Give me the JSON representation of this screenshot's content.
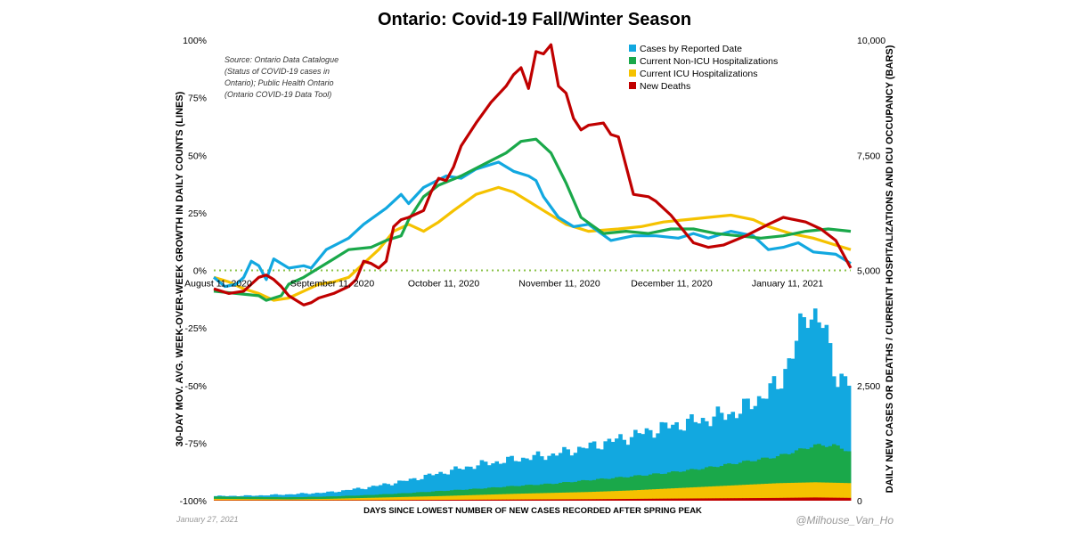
{
  "chart_data": {
    "type": "line",
    "title": "Ontario: Covid-19 Fall/Winter Season",
    "xlabel": "DAYS SINCE LOWEST NUMBER OF NEW CASES RECORDED AFTER SPRING PEAK",
    "ylabel_left": "30-DAY MOV. AVG. WEEK-OVER-WEEK GROWTH IN DAILY COUNTS (LINES)",
    "ylabel_right": "DAILY NEW CASES OR DEATHS / CURRENT HOSPITALIZATIONS AND ICU OCCUPANCY (BARS)",
    "x_ticks": [
      "August 11, 2020",
      "September 11, 2020",
      "October 11, 2020",
      "November 11, 2020",
      "December 11, 2020",
      "January 11, 2021"
    ],
    "y_left_ticks": [
      "100%",
      "75%",
      "50%",
      "25%",
      "0%",
      "-25%",
      "-50%",
      "-75%",
      "-100%"
    ],
    "y_right_ticks": [
      "10,000",
      "7,500",
      "5,000",
      "2,500",
      "0"
    ],
    "ylim_left": [
      -100,
      100
    ],
    "ylim_right": [
      0,
      10000
    ],
    "source_note": "Source: Ontario Data Catalogue (Status of COVID-19 cases in Ontario); Public Health Ontario (Ontario COVID-19 Data Tool)",
    "date_note": "January 27, 2021",
    "credit": "@Milhouse_Van_Ho",
    "legend_position": "top-right",
    "days": 170,
    "series": [
      {
        "name": "Cases by Reported Date",
        "color": "#12A8E0"
      },
      {
        "name": "Current Non-ICU Hospitalizations",
        "color": "#1AA84A"
      },
      {
        "name": "Current ICU Hospitalizations",
        "color": "#F5C200"
      },
      {
        "name": "New Deaths",
        "color": "#C00000"
      }
    ],
    "growth_lines": {
      "Cases by Reported Date": [
        [
          0,
          -3
        ],
        [
          3,
          -7
        ],
        [
          6,
          -6
        ],
        [
          8,
          -3
        ],
        [
          10,
          4
        ],
        [
          12,
          2
        ],
        [
          14,
          -4
        ],
        [
          16,
          5
        ],
        [
          20,
          1
        ],
        [
          24,
          2
        ],
        [
          26,
          1
        ],
        [
          30,
          9
        ],
        [
          36,
          14
        ],
        [
          40,
          20
        ],
        [
          46,
          27
        ],
        [
          50,
          33
        ],
        [
          52,
          29
        ],
        [
          56,
          36
        ],
        [
          62,
          41
        ],
        [
          66,
          40
        ],
        [
          70,
          44
        ],
        [
          76,
          47
        ],
        [
          80,
          43
        ],
        [
          84,
          41
        ],
        [
          86,
          39
        ],
        [
          88,
          32
        ],
        [
          92,
          23
        ],
        [
          96,
          19
        ],
        [
          100,
          20
        ],
        [
          106,
          13
        ],
        [
          112,
          15
        ],
        [
          118,
          15
        ],
        [
          124,
          14
        ],
        [
          128,
          16
        ],
        [
          132,
          14
        ],
        [
          138,
          17
        ],
        [
          144,
          15
        ],
        [
          148,
          9
        ],
        [
          152,
          10
        ],
        [
          156,
          12
        ],
        [
          160,
          8
        ],
        [
          166,
          7
        ],
        [
          170,
          3
        ]
      ],
      "Current Non-ICU Hospitalizations": [
        [
          0,
          -9
        ],
        [
          6,
          -10
        ],
        [
          12,
          -11
        ],
        [
          14,
          -13
        ],
        [
          18,
          -11
        ],
        [
          20,
          -6
        ],
        [
          24,
          -3
        ],
        [
          28,
          1
        ],
        [
          32,
          5
        ],
        [
          36,
          9
        ],
        [
          42,
          10
        ],
        [
          46,
          13
        ],
        [
          50,
          15
        ],
        [
          52,
          22
        ],
        [
          56,
          32
        ],
        [
          60,
          37
        ],
        [
          66,
          41
        ],
        [
          72,
          46
        ],
        [
          78,
          51
        ],
        [
          82,
          56
        ],
        [
          86,
          57
        ],
        [
          90,
          51
        ],
        [
          94,
          38
        ],
        [
          98,
          23
        ],
        [
          104,
          16
        ],
        [
          110,
          17
        ],
        [
          116,
          16
        ],
        [
          122,
          18
        ],
        [
          128,
          18
        ],
        [
          134,
          16
        ],
        [
          140,
          15
        ],
        [
          146,
          14
        ],
        [
          152,
          15
        ],
        [
          158,
          17
        ],
        [
          164,
          18
        ],
        [
          170,
          17
        ]
      ],
      "Current ICU Hospitalizations": [
        [
          0,
          -3
        ],
        [
          4,
          -5
        ],
        [
          8,
          -8
        ],
        [
          12,
          -10
        ],
        [
          16,
          -13
        ],
        [
          20,
          -12
        ],
        [
          24,
          -9
        ],
        [
          28,
          -6
        ],
        [
          32,
          -5
        ],
        [
          36,
          -3
        ],
        [
          40,
          3
        ],
        [
          44,
          9
        ],
        [
          48,
          17
        ],
        [
          52,
          20
        ],
        [
          56,
          17
        ],
        [
          60,
          21
        ],
        [
          64,
          26
        ],
        [
          70,
          33
        ],
        [
          76,
          36
        ],
        [
          80,
          34
        ],
        [
          84,
          30
        ],
        [
          88,
          26
        ],
        [
          94,
          20
        ],
        [
          100,
          17
        ],
        [
          108,
          18
        ],
        [
          114,
          19
        ],
        [
          120,
          21
        ],
        [
          126,
          22
        ],
        [
          132,
          23
        ],
        [
          138,
          24
        ],
        [
          144,
          22
        ],
        [
          148,
          19
        ],
        [
          154,
          16
        ],
        [
          160,
          14
        ],
        [
          166,
          11
        ],
        [
          170,
          9
        ]
      ],
      "New Deaths": [
        [
          0,
          -8
        ],
        [
          4,
          -10
        ],
        [
          8,
          -9
        ],
        [
          10,
          -6
        ],
        [
          12,
          -3
        ],
        [
          14,
          -2
        ],
        [
          16,
          -4
        ],
        [
          18,
          -7
        ],
        [
          20,
          -11
        ],
        [
          22,
          -13
        ],
        [
          24,
          -15
        ],
        [
          26,
          -14
        ],
        [
          28,
          -12
        ],
        [
          32,
          -10
        ],
        [
          36,
          -7
        ],
        [
          38,
          -4
        ],
        [
          40,
          4
        ],
        [
          42,
          3
        ],
        [
          44,
          1
        ],
        [
          46,
          4
        ],
        [
          48,
          19
        ],
        [
          50,
          22
        ],
        [
          52,
          23
        ],
        [
          56,
          26
        ],
        [
          58,
          34
        ],
        [
          60,
          40
        ],
        [
          62,
          39
        ],
        [
          64,
          45
        ],
        [
          66,
          54
        ],
        [
          70,
          64
        ],
        [
          74,
          73
        ],
        [
          78,
          80
        ],
        [
          80,
          85
        ],
        [
          82,
          88
        ],
        [
          84,
          79
        ],
        [
          86,
          95
        ],
        [
          88,
          94
        ],
        [
          90,
          98
        ],
        [
          92,
          80
        ],
        [
          94,
          77
        ],
        [
          96,
          66
        ],
        [
          98,
          61
        ],
        [
          100,
          63
        ],
        [
          104,
          64
        ],
        [
          106,
          59
        ],
        [
          108,
          58
        ],
        [
          112,
          33
        ],
        [
          116,
          32
        ],
        [
          118,
          30
        ],
        [
          122,
          24
        ],
        [
          128,
          12
        ],
        [
          132,
          10
        ],
        [
          136,
          11
        ],
        [
          142,
          15
        ],
        [
          148,
          20
        ],
        [
          152,
          23
        ],
        [
          158,
          21
        ],
        [
          162,
          18
        ],
        [
          166,
          13
        ],
        [
          168,
          7
        ],
        [
          170,
          1
        ]
      ]
    },
    "bar_levels": {
      "Cases by Reported Date": [
        [
          0,
          100
        ],
        [
          10,
          110
        ],
        [
          20,
          140
        ],
        [
          30,
          180
        ],
        [
          40,
          280
        ],
        [
          50,
          420
        ],
        [
          60,
          600
        ],
        [
          70,
          780
        ],
        [
          80,
          900
        ],
        [
          90,
          1000
        ],
        [
          100,
          1180
        ],
        [
          110,
          1380
        ],
        [
          120,
          1600
        ],
        [
          130,
          1750
        ],
        [
          140,
          1950
        ],
        [
          150,
          2500
        ],
        [
          155,
          3400
        ],
        [
          158,
          4200
        ],
        [
          162,
          3800
        ],
        [
          166,
          2700
        ],
        [
          170,
          2500
        ]
      ],
      "Current Non-ICU Hospitalizations": [
        [
          0,
          90
        ],
        [
          10,
          80
        ],
        [
          20,
          75
        ],
        [
          30,
          90
        ],
        [
          40,
          120
        ],
        [
          50,
          160
        ],
        [
          60,
          210
        ],
        [
          70,
          260
        ],
        [
          80,
          320
        ],
        [
          90,
          370
        ],
        [
          100,
          450
        ],
        [
          110,
          520
        ],
        [
          120,
          600
        ],
        [
          130,
          700
        ],
        [
          140,
          830
        ],
        [
          150,
          960
        ],
        [
          160,
          1200
        ],
        [
          165,
          1200
        ],
        [
          170,
          1050
        ]
      ],
      "Current ICU Hospitalizations": [
        [
          0,
          40
        ],
        [
          10,
          35
        ],
        [
          20,
          30
        ],
        [
          30,
          40
        ],
        [
          40,
          60
        ],
        [
          50,
          80
        ],
        [
          60,
          100
        ],
        [
          70,
          125
        ],
        [
          80,
          150
        ],
        [
          90,
          170
        ],
        [
          100,
          190
        ],
        [
          110,
          220
        ],
        [
          120,
          260
        ],
        [
          130,
          300
        ],
        [
          140,
          340
        ],
        [
          150,
          380
        ],
        [
          160,
          400
        ],
        [
          170,
          380
        ]
      ],
      "New Deaths": [
        [
          0,
          10
        ],
        [
          40,
          12
        ],
        [
          80,
          25
        ],
        [
          100,
          32
        ],
        [
          120,
          45
        ],
        [
          140,
          55
        ],
        [
          150,
          60
        ],
        [
          160,
          70
        ],
        [
          170,
          60
        ]
      ]
    }
  }
}
